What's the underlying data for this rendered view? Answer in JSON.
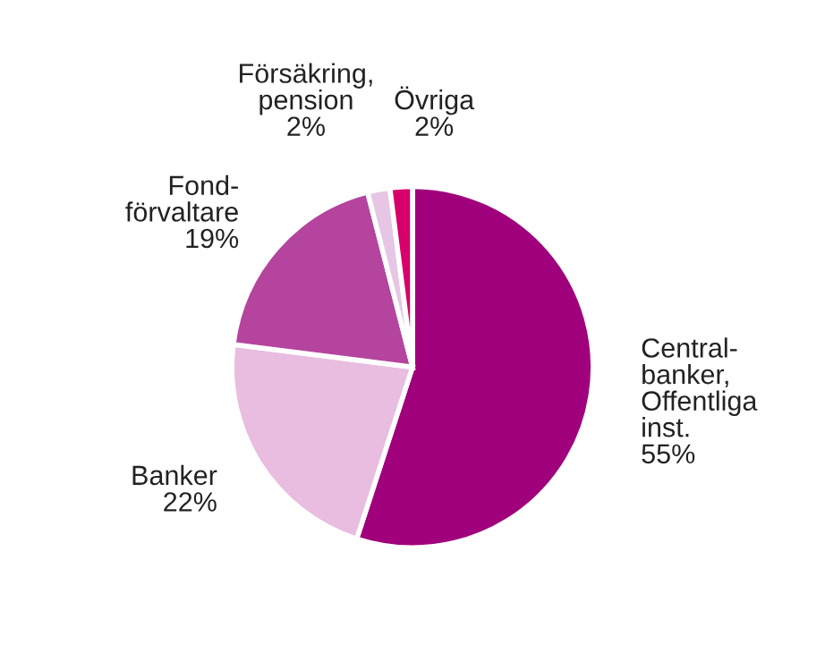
{
  "chart_data": {
    "type": "pie",
    "categories": [
      "Central-\nbanker,\nOffentliga\ninst.",
      "Banker",
      "Fond-\nförvaltare",
      "Försäkring,\npension",
      "Övriga"
    ],
    "values": [
      55,
      22,
      19,
      2,
      2
    ],
    "colors": [
      "#a0007c",
      "#e8bde0",
      "#b4449e",
      "#e6c6e4",
      "#d8006a"
    ],
    "value_labels": [
      "55%",
      "22%",
      "19%",
      "2%",
      "2%"
    ]
  }
}
